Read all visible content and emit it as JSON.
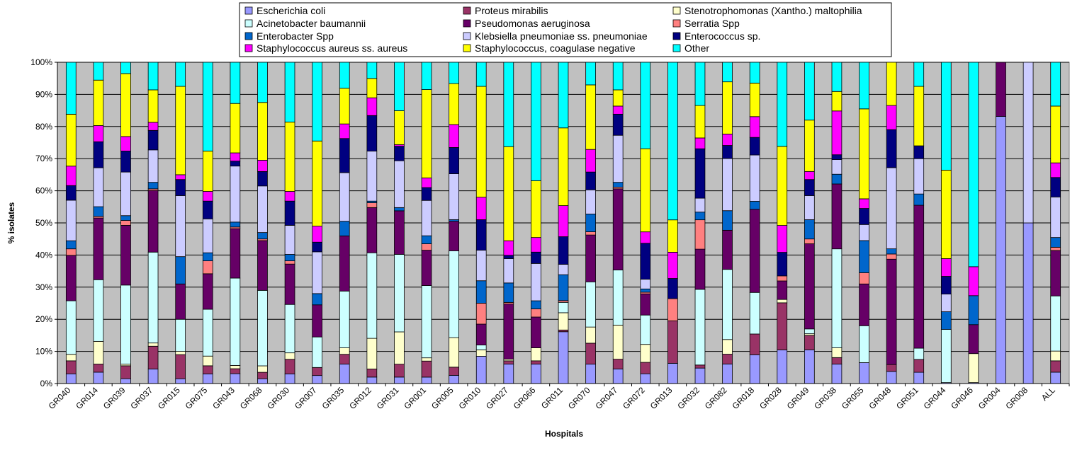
{
  "chart_data": {
    "type": "bar",
    "stacked": "percent",
    "xlabel": "Hospitals",
    "ylabel": "% isolates",
    "ylim": [
      0,
      100
    ],
    "y_ticks": [
      "0%",
      "10%",
      "20%",
      "30%",
      "40%",
      "50%",
      "60%",
      "70%",
      "80%",
      "90%",
      "100%"
    ],
    "grid": true,
    "plot_background": "#c0c0c0",
    "legend_position": "top",
    "categories": [
      "GR040",
      "GR014",
      "GR039",
      "GR037",
      "GR015",
      "GR075",
      "GR043",
      "GR068",
      "GR030",
      "GR007",
      "GR035",
      "GR012",
      "GR031",
      "GR001",
      "GR005",
      "GR010",
      "GR027",
      "GR066",
      "GR011",
      "GR070",
      "GR047",
      "GR072",
      "GR013",
      "GR032",
      "GR082",
      "GR018",
      "GR028",
      "GR049",
      "GR038",
      "GR055",
      "GR048",
      "GR051",
      "GR044",
      "GR046",
      "GR004",
      "GR008",
      "ALL"
    ],
    "series": [
      {
        "name": "Escherichia coli",
        "color": "#9999ff",
        "values": [
          3,
          3.5,
          1.5,
          4.5,
          1.5,
          3,
          3,
          1.5,
          3,
          2.5,
          6,
          2,
          2,
          2,
          2.5,
          8.5,
          6,
          6,
          15,
          6,
          4.5,
          3,
          5,
          5,
          6,
          9,
          10,
          10.5,
          6,
          6.5,
          3.5,
          3.5,
          0.3,
          0.3,
          71.5,
          50,
          3.5
        ]
      },
      {
        "name": "Proteus mirabilis",
        "color": "#993366",
        "values": [
          4,
          2.5,
          4,
          7,
          7.5,
          2.5,
          1.5,
          2,
          4.5,
          2.5,
          3,
          2.5,
          4,
          5,
          2.5,
          0,
          1,
          1,
          0.5,
          6.5,
          3,
          3.5,
          10.5,
          1,
          3,
          6.5,
          14,
          4.5,
          2,
          0,
          2,
          4,
          0,
          0,
          0,
          0,
          3.5
        ]
      },
      {
        "name": "Stenotrophomonas (Xantho.) maltophilia",
        "color": "#ffffcc",
        "values": [
          2,
          7,
          0.5,
          1,
          1,
          3,
          1,
          2,
          2,
          0,
          2,
          9.5,
          10,
          1,
          9,
          2,
          0.5,
          4,
          5,
          5,
          10.5,
          5.5,
          0,
          0,
          4.5,
          0,
          1,
          0.5,
          3,
          0,
          0,
          0,
          0,
          9,
          0,
          0,
          3
        ]
      },
      {
        "name": "Acinetobacter baumannii",
        "color": "#ccffff",
        "values": [
          16.5,
          19,
          24.5,
          28,
          10,
          14.5,
          26.5,
          23.5,
          15,
          9.5,
          17.5,
          26.5,
          24,
          22.5,
          26.5,
          1.5,
          0,
          0,
          3,
          14,
          17,
          9,
          0,
          24.5,
          21.5,
          13,
          0,
          1.5,
          30.5,
          11.5,
          0,
          3.5,
          16.5,
          0,
          0,
          0,
          17
        ]
      },
      {
        "name": "Pseudomonas aeruginosa",
        "color": "#660066",
        "values": [
          14,
          19,
          18.5,
          19,
          11,
          11,
          15,
          15.5,
          12.5,
          10,
          17,
          14,
          13.5,
          11,
          9,
          6.5,
          17,
          9.5,
          0,
          14.5,
          25,
          6.5,
          0,
          13,
          12,
          26,
          5.5,
          26.5,
          20,
          13,
          30.5,
          44.5,
          0,
          9,
          14.5,
          0,
          14
        ]
      },
      {
        "name": "Serratia Spp",
        "color": "#ff8080",
        "values": [
          2,
          0.5,
          1.5,
          0.5,
          0,
          4,
          0.5,
          0.5,
          1,
          0,
          0,
          1.5,
          0,
          2,
          0,
          6.5,
          0.5,
          2.5,
          0.5,
          1,
          0.5,
          0.5,
          5.5,
          9.5,
          0,
          0,
          1.5,
          1.5,
          0,
          3.5,
          1.5,
          0,
          0,
          0,
          0,
          0,
          1
        ]
      },
      {
        "name": "Enterobacter Spp",
        "color": "#0066cc",
        "values": [
          2.5,
          3,
          1.5,
          2,
          8.5,
          2.5,
          1.5,
          2,
          2,
          3.5,
          4.5,
          0.5,
          1,
          2.5,
          0.5,
          7,
          6,
          2.5,
          7.5,
          5.5,
          1.5,
          1,
          0,
          2.5,
          6,
          2.5,
          0,
          6,
          3,
          10,
          1.5,
          3.5,
          5.5,
          9,
          0,
          0,
          3
        ]
      },
      {
        "name": "Klebsiella pneumoniae ss. pneumoniae",
        "color": "#ccccff",
        "values": [
          12.5,
          12,
          13.5,
          10,
          19,
          10.5,
          17,
          14.5,
          9,
          13,
          15,
          15.5,
          14.5,
          11,
          14,
          9.5,
          7.5,
          11.5,
          3,
          7.5,
          14.5,
          3,
          0,
          4.5,
          16,
          14.5,
          0,
          7.5,
          4.5,
          5,
          23.5,
          11,
          5.5,
          0,
          0,
          50,
          12.5
        ]
      },
      {
        "name": "Enterococcus sp.",
        "color": "#000080",
        "values": [
          4.5,
          8,
          6.5,
          6,
          5,
          5.5,
          1.5,
          4.5,
          7.5,
          3,
          10.5,
          11,
          4.5,
          4,
          8,
          9.5,
          1,
          3.5,
          8,
          5.5,
          6.5,
          11,
          5,
          16,
          4,
          5.5,
          7,
          5,
          1.5,
          5,
          11,
          4,
          5.5,
          0,
          0,
          0,
          6
        ]
      },
      {
        "name": "Staphylococcus aureus ss. aureus",
        "color": "#ff00ff",
        "values": [
          6,
          5,
          4.5,
          2.5,
          1.5,
          3,
          2.5,
          3.5,
          3,
          5,
          4.5,
          5.5,
          0.5,
          3,
          7,
          7,
          4.5,
          4.5,
          9,
          7,
          2.5,
          3.5,
          6.5,
          3.5,
          3.5,
          6.5,
          8,
          2.5,
          13.5,
          3,
          7,
          0,
          5.5,
          9,
          0,
          0,
          4.5
        ]
      },
      {
        "name": "Staphylococcus, coagulase negative",
        "color": "#ffff00",
        "values": [
          16,
          14,
          19.5,
          10,
          27.5,
          12.5,
          15,
          18,
          21.5,
          26.5,
          11,
          6,
          10.5,
          27.5,
          12.5,
          34.5,
          29,
          17.5,
          22.5,
          20,
          5,
          25.5,
          8,
          10.5,
          16,
          10.5,
          23.5,
          16,
          6,
          28,
          12.5,
          18.5,
          27.5,
          0,
          0,
          0,
          17.5
        ]
      },
      {
        "name": "Other",
        "color": "#00ffff",
        "values": [
          16,
          5.5,
          3.5,
          8.5,
          7.5,
          27.5,
          12.5,
          12.5,
          18.5,
          24.5,
          8,
          5,
          15,
          8.5,
          6.5,
          7.5,
          26,
          36.5,
          19,
          7,
          8.5,
          26.5,
          39,
          14,
          6,
          6.5,
          25,
          18,
          9,
          14.5,
          0,
          7.5,
          33.5,
          63.5,
          0,
          0,
          13.5
        ]
      }
    ]
  }
}
